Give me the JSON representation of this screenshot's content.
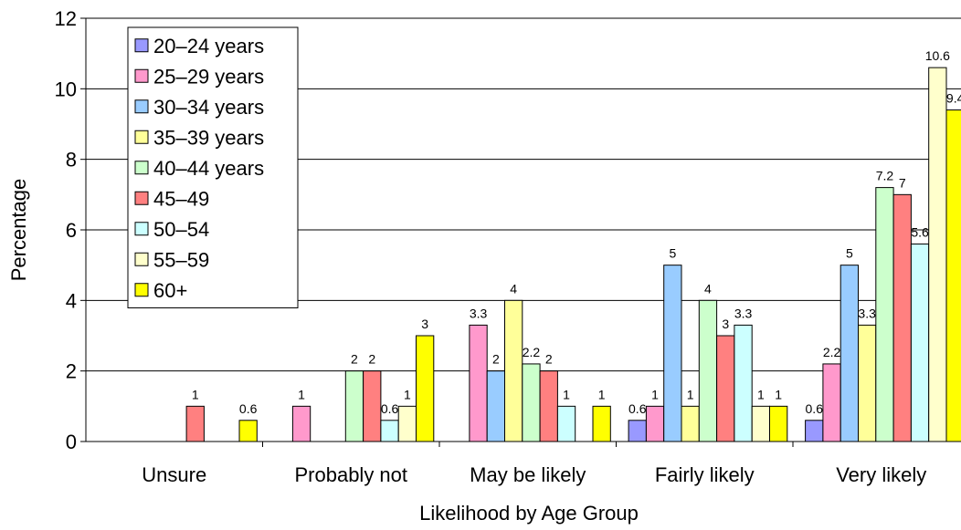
{
  "chart_data": {
    "type": "bar",
    "title": "",
    "xlabel": "Likelihood by Age Group",
    "ylabel": "Percentage",
    "ylim": [
      0,
      12
    ],
    "yticks": [
      0,
      2,
      4,
      6,
      8,
      10,
      12
    ],
    "grid": true,
    "legend_position": "top-left",
    "categories": [
      "Unsure",
      "Probably not",
      "May be likely",
      "Fairly likely",
      "Very likely"
    ],
    "series": [
      {
        "name": "20–24 years",
        "color": "#9999ff",
        "values": [
          null,
          null,
          null,
          0.6,
          0.6
        ]
      },
      {
        "name": "25–29 years",
        "color": "#ff99cc",
        "values": [
          null,
          1,
          3.3,
          1,
          2.2
        ]
      },
      {
        "name": "30–34 years",
        "color": "#99ccff",
        "values": [
          null,
          null,
          2,
          5,
          5
        ]
      },
      {
        "name": "35–39 years",
        "color": "#ffff99",
        "values": [
          null,
          null,
          4,
          1,
          3.3
        ]
      },
      {
        "name": "40–44 years",
        "color": "#ccffcc",
        "values": [
          null,
          2,
          2.2,
          4,
          7.2
        ]
      },
      {
        "name": "45–49",
        "color": "#ff8080",
        "values": [
          1,
          2,
          2,
          3,
          7
        ]
      },
      {
        "name": "50–54",
        "color": "#ccffff",
        "values": [
          null,
          0.6,
          1,
          3.3,
          5.6
        ]
      },
      {
        "name": "55–59",
        "color": "#ffffcc",
        "values": [
          null,
          1,
          null,
          1,
          10.6
        ]
      },
      {
        "name": "60+",
        "color": "#ffff00",
        "values": [
          0.6,
          3,
          1,
          1,
          9.4
        ]
      }
    ]
  }
}
